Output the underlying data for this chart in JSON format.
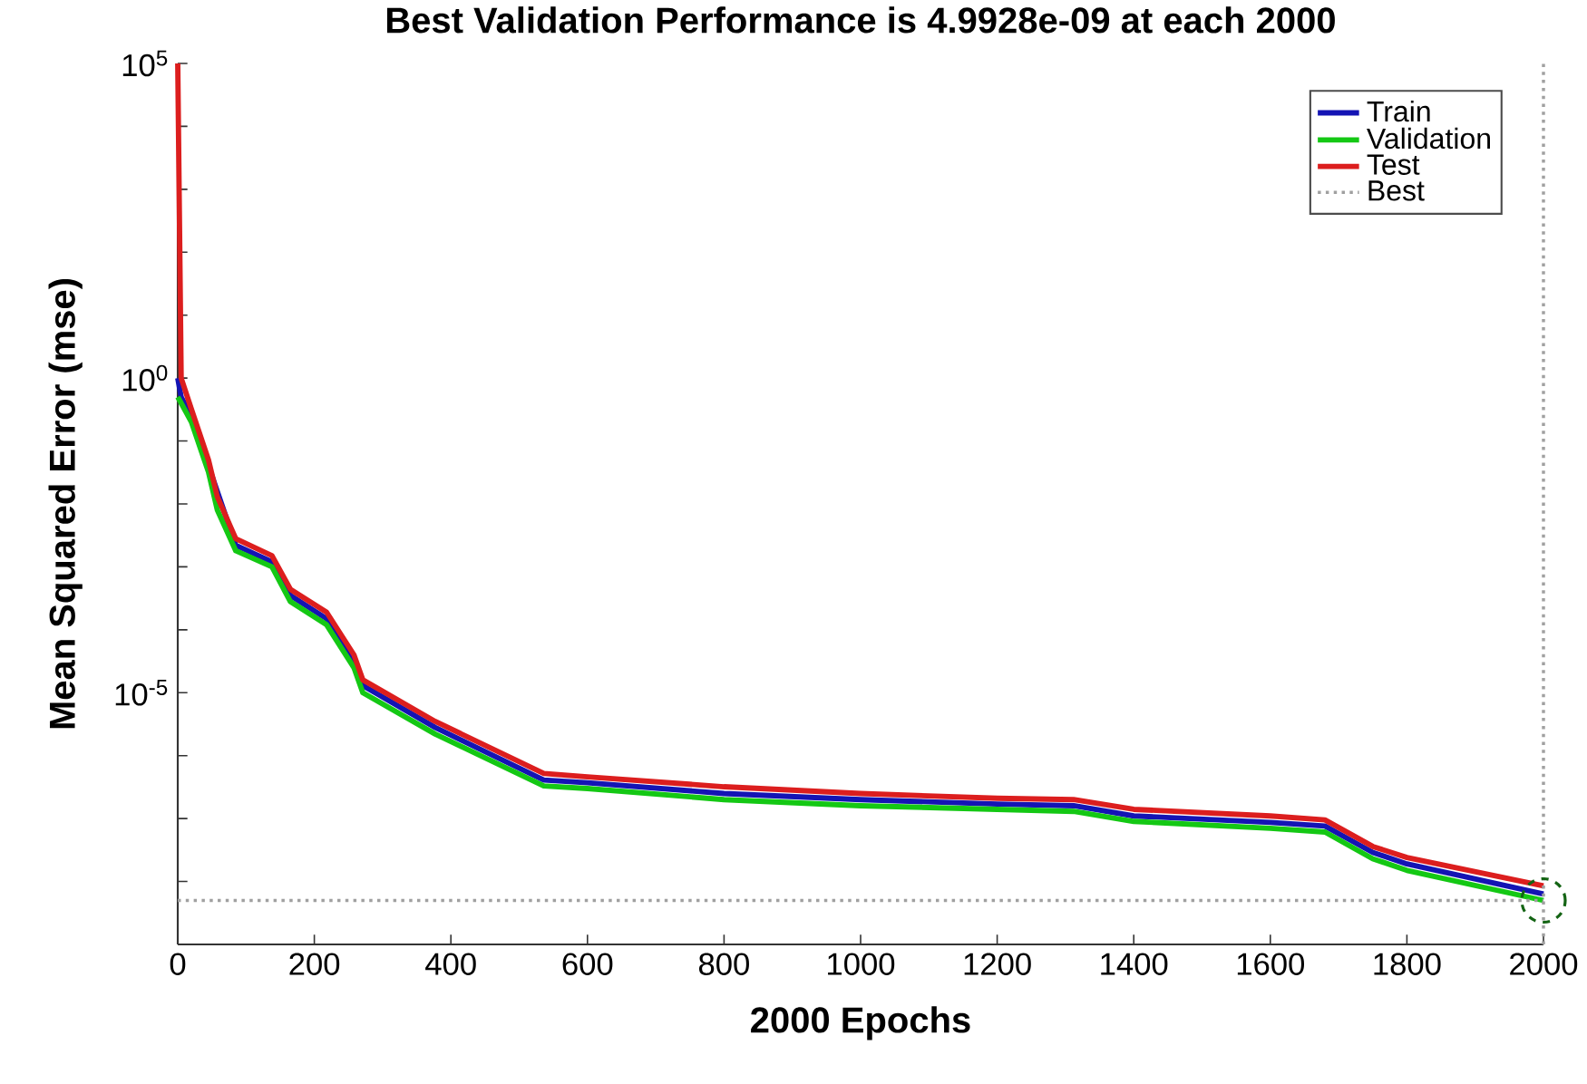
{
  "chart_data": {
    "type": "line",
    "title": "Best Validation Performance is 4.9928e-09 at each 2000",
    "xlabel": "2000 Epochs",
    "ylabel": "Mean Squared Error (mse)",
    "log": "y",
    "xlim": [
      0,
      2000
    ],
    "ylim": [
      1e-09,
      100000
    ],
    "xticks": [
      0,
      200,
      400,
      600,
      800,
      1000,
      1200,
      1400,
      1600,
      1800,
      2000
    ],
    "yticks": [
      {
        "value": 1e-09,
        "label": null
      },
      {
        "value": 1e-08,
        "label": null
      },
      {
        "value": 1e-07,
        "label": null
      },
      {
        "value": 1e-06,
        "label": null
      },
      {
        "value": 1e-05,
        "label": "10$^{-5}$"
      },
      {
        "value": 0.0001,
        "label": null
      },
      {
        "value": 0.001,
        "label": null
      },
      {
        "value": 0.01,
        "label": null
      },
      {
        "value": 0.1,
        "label": null
      },
      {
        "value": 1,
        "label": "10$^{0}$"
      },
      {
        "value": 10,
        "label": null
      },
      {
        "value": 100,
        "label": null
      },
      {
        "value": 1000,
        "label": null
      },
      {
        "value": 10000,
        "label": null
      },
      {
        "value": 100000,
        "label": "10$^{5}$"
      }
    ],
    "legend": "top right",
    "x": [
      0,
      5,
      20,
      45,
      58,
      85,
      138,
      165,
      218,
      258,
      271,
      377,
      536,
      600,
      800,
      1000,
      1200,
      1312,
      1400,
      1600,
      1680,
      1750,
      1800,
      2000
    ],
    "series": [
      {
        "name": "Train",
        "color": "#1414b4",
        "values": [
          1.0,
          0.5,
          0.25,
          null,
          null,
          0.0022,
          0.0012,
          0.00035,
          0.00015,
          3.2e-05,
          1.3e-05,
          2.8e-06,
          4.1e-07,
          3.7e-07,
          2.5e-07,
          2e-07,
          1.7e-07,
          1.6e-07,
          1.1e-07,
          8.7e-08,
          7.6e-08,
          2.9e-08,
          1.9e-08,
          6.3e-09
        ]
      },
      {
        "name": "Validation",
        "color": "#14c814",
        "values": [
          0.5,
          0.4,
          0.2,
          0.032,
          0.008,
          0.0018,
          0.001,
          0.00028,
          0.00012,
          2.5e-05,
          1e-05,
          2.2e-06,
          3.3e-07,
          3e-07,
          2e-07,
          1.6e-07,
          1.4e-07,
          1.3e-07,
          9e-08,
          7e-08,
          6.1e-08,
          2.3e-08,
          1.5e-08,
          4.9928e-09
        ]
      },
      {
        "name": "Test",
        "color": "#dc1e1e",
        "values": [
          100000,
          1.0,
          0.32,
          0.05,
          0.013,
          0.0028,
          0.0015,
          0.00044,
          0.00019,
          4e-05,
          1.6e-05,
          3.5e-06,
          5.2e-07,
          4.6e-07,
          3.2e-07,
          2.5e-07,
          2.1e-07,
          2e-07,
          1.4e-07,
          1.1e-07,
          9.5e-08,
          3.6e-08,
          2.4e-08,
          8.5e-09
        ]
      },
      {
        "type": "scatter",
        "x": [
          2000
        ],
        "color": "#146414",
        "marker": "circle",
        "line_style": "dashed",
        "values": [
          4.9928e-09
        ]
      }
    ],
    "ref_lines": [
      {
        "axis": "y",
        "value": 4.9928e-09,
        "label": "Best",
        "color": "#a0a0a0",
        "line_style": "dotted"
      },
      {
        "axis": "x",
        "value": 2000,
        "color": "#a0a0a0",
        "line_style": "dotted"
      }
    ]
  }
}
